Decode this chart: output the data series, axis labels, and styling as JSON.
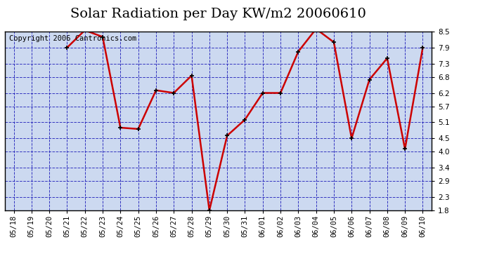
{
  "title": "Solar Radiation per Day KW/m2 20060610",
  "copyright": "Copyright 2006 Cantronics.com",
  "dates": [
    "05/18",
    "05/19",
    "05/20",
    "05/21",
    "05/22",
    "05/23",
    "05/24",
    "05/25",
    "05/26",
    "05/27",
    "05/28",
    "05/29",
    "05/30",
    "05/31",
    "06/01",
    "06/02",
    "06/03",
    "06/04",
    "06/05",
    "06/06",
    "06/07",
    "06/08",
    "06/09",
    "06/10"
  ],
  "values": [
    null,
    null,
    null,
    7.9,
    8.55,
    8.3,
    4.9,
    4.85,
    6.3,
    6.2,
    6.85,
    1.8,
    4.6,
    5.2,
    6.2,
    6.2,
    7.75,
    8.6,
    8.1,
    4.5,
    6.7,
    7.5,
    4.1,
    7.9
  ],
  "ylim_min": 1.8,
  "ylim_max": 8.5,
  "yticks": [
    1.8,
    2.3,
    2.9,
    3.4,
    4.0,
    4.5,
    5.1,
    5.7,
    6.2,
    6.8,
    7.3,
    7.9,
    8.5
  ],
  "line_color": "#cc0000",
  "marker_color": "#000000",
  "grid_color": "#2222bb",
  "plot_bg": "#ccd9f0",
  "title_bg": "#ffffff",
  "title_fontsize": 14,
  "copyright_fontsize": 7.5,
  "tick_fontsize": 7.5
}
